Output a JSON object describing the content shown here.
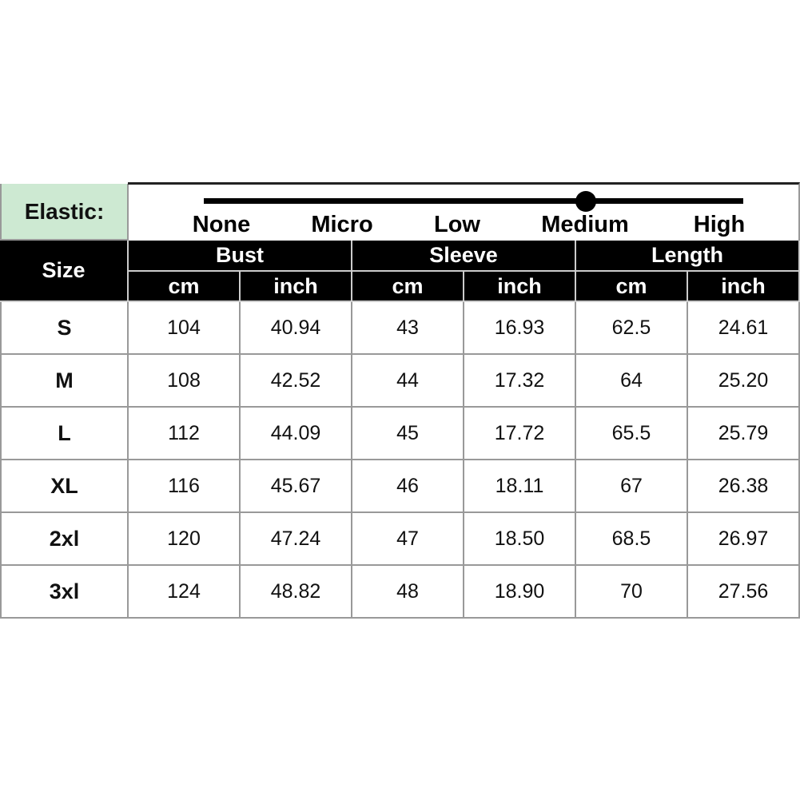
{
  "elastic": {
    "label": "Elastic:",
    "levels": [
      "None",
      "Micro",
      "Low",
      "Medium",
      "High"
    ],
    "selected": "Medium"
  },
  "header": {
    "size": "Size",
    "groups": [
      "Bust",
      "Sleeve",
      "Length"
    ],
    "units": [
      "cm",
      "inch",
      "cm",
      "inch",
      "cm",
      "inch"
    ]
  },
  "rows": [
    [
      "S",
      "104",
      "40.94",
      "43",
      "16.93",
      "62.5",
      "24.61"
    ],
    [
      "M",
      "108",
      "42.52",
      "44",
      "17.32",
      "64",
      "25.20"
    ],
    [
      "L",
      "112",
      "44.09",
      "45",
      "17.72",
      "65.5",
      "25.79"
    ],
    [
      "XL",
      "116",
      "45.67",
      "46",
      "18.11",
      "67",
      "26.38"
    ],
    [
      "2xl",
      "120",
      "47.24",
      "47",
      "18.50",
      "68.5",
      "26.97"
    ],
    [
      "3xl",
      "124",
      "48.82",
      "48",
      "18.90",
      "70",
      "27.56"
    ]
  ],
  "colors": {
    "elastic_bg": "#cde9d2",
    "header_bg": "#000000",
    "grid": "#999999"
  }
}
